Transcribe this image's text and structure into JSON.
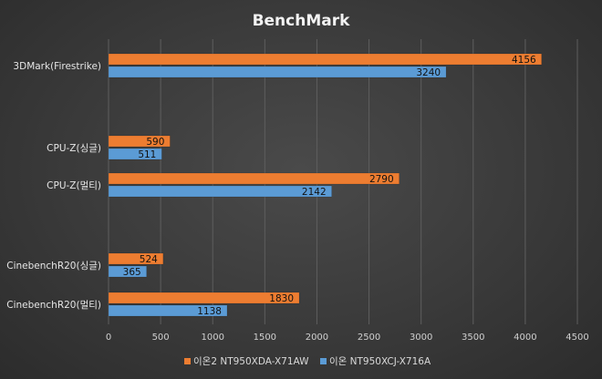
{
  "chart_data": {
    "type": "bar",
    "orientation": "horizontal",
    "title": "BenchMark",
    "categories": [
      "3DMark(Firestrike)",
      "CPU-Z(싱글)",
      "CPU-Z(멀티)",
      "CinebenchR20(싱글)",
      "CinebenchR20(멀티)"
    ],
    "series": [
      {
        "name": "이온2 NT950XDA-X71AW",
        "color": "#ed7d31",
        "values": [
          4156,
          590,
          2790,
          524,
          1830
        ]
      },
      {
        "name": "이온 NT950XCJ-X716A",
        "color": "#5b9bd5",
        "values": [
          3240,
          511,
          2142,
          365,
          1138
        ]
      }
    ],
    "xlim": [
      0,
      4500
    ],
    "xticks": [
      0,
      500,
      1000,
      1500,
      2000,
      2500,
      3000,
      3500,
      4000,
      4500
    ],
    "grid": true,
    "legend": "bottom",
    "data_labels": true
  }
}
